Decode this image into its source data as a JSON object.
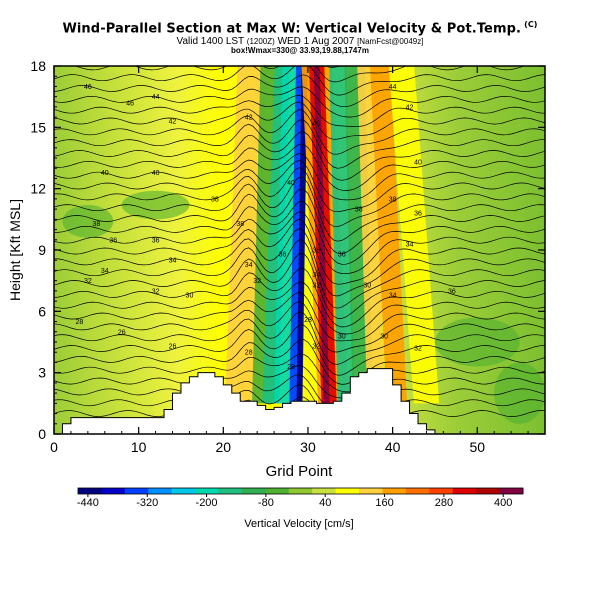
{
  "title": {
    "main": "Wind-Parallel Section at Max W: Vertical Velocity & Pot.Temp.",
    "copyright": "(C)",
    "valid_prefix": "Valid 1400 LST",
    "valid_init": "(1200Z)",
    "valid_date": "WED 1 Aug 2007",
    "valid_model": "[NamFcst@0049z]",
    "location": "box!Wmax=330@ 33.93,19.88,1747m"
  },
  "chart_data": {
    "type": "heatmap",
    "xlabel": "Grid Point",
    "ylabel": "Height [Kft MSL]",
    "xlim": [
      0,
      58
    ],
    "ylim": [
      0,
      18
    ],
    "xticks": [
      0,
      10,
      20,
      30,
      40,
      50
    ],
    "yticks": [
      0,
      3,
      6,
      9,
      12,
      15,
      18
    ],
    "colorbar": {
      "label": "Vertical Velocity [cm/s]",
      "tick_labels": [
        -440,
        -320,
        -200,
        -80,
        40,
        160,
        280,
        400
      ],
      "range": [
        -460,
        440
      ],
      "colors": [
        "#000080",
        "#0000c8",
        "#0040ff",
        "#0090ff",
        "#00c8e6",
        "#00d8b0",
        "#20c080",
        "#30b050",
        "#50b030",
        "#90c830",
        "#c8e040",
        "#ffff00",
        "#ffd040",
        "#ffa000",
        "#ff7000",
        "#ff4000",
        "#e00000",
        "#b00000",
        "#800040"
      ]
    },
    "terrain_kft": [
      0,
      0.5,
      0.8,
      0.8,
      0.8,
      0.8,
      0.8,
      0.8,
      0.8,
      0.8,
      0.8,
      0.8,
      0.8,
      1.2,
      2.0,
      2.5,
      2.8,
      3.0,
      3.0,
      2.8,
      2.4,
      2.0,
      1.6,
      1.6,
      1.4,
      1.2,
      1.3,
      1.5,
      1.6,
      1.6,
      1.6,
      1.5,
      1.5,
      1.6,
      2.0,
      2.8,
      3.0,
      3.2,
      3.2,
      3.2,
      2.4,
      1.6,
      1.0,
      0.5,
      0.2,
      0,
      0,
      0,
      0,
      0,
      0,
      0,
      0,
      0,
      0,
      0,
      0,
      0,
      0
    ],
    "contour_labels": [
      {
        "text": "46",
        "x": 4,
        "y": 17.0
      },
      {
        "text": "46",
        "x": 9,
        "y": 16.2
      },
      {
        "text": "44",
        "x": 12,
        "y": 16.5
      },
      {
        "text": "42",
        "x": 14,
        "y": 15.3
      },
      {
        "text": "42",
        "x": 23,
        "y": 15.5
      },
      {
        "text": "40",
        "x": 31,
        "y": 15.2
      },
      {
        "text": "44",
        "x": 40,
        "y": 17.0
      },
      {
        "text": "42",
        "x": 42,
        "y": 16.0
      },
      {
        "text": "40",
        "x": 43,
        "y": 13.3
      },
      {
        "text": "40",
        "x": 6,
        "y": 12.8
      },
      {
        "text": "40",
        "x": 12,
        "y": 12.8
      },
      {
        "text": "38",
        "x": 19,
        "y": 11.5
      },
      {
        "text": "38",
        "x": 22,
        "y": 10.3
      },
      {
        "text": "40",
        "x": 28,
        "y": 12.3
      },
      {
        "text": "38",
        "x": 36,
        "y": 11.0
      },
      {
        "text": "38",
        "x": 40,
        "y": 11.5
      },
      {
        "text": "36",
        "x": 43,
        "y": 10.8
      },
      {
        "text": "38",
        "x": 5,
        "y": 10.3
      },
      {
        "text": "36",
        "x": 7,
        "y": 9.5
      },
      {
        "text": "36",
        "x": 12,
        "y": 9.5
      },
      {
        "text": "34",
        "x": 14,
        "y": 8.5
      },
      {
        "text": "34",
        "x": 23,
        "y": 8.3
      },
      {
        "text": "36",
        "x": 27,
        "y": 8.8
      },
      {
        "text": "36",
        "x": 31,
        "y": 9.0
      },
      {
        "text": "36",
        "x": 34,
        "y": 8.8
      },
      {
        "text": "34",
        "x": 42,
        "y": 9.3
      },
      {
        "text": "34",
        "x": 6,
        "y": 8.0
      },
      {
        "text": "32",
        "x": 4,
        "y": 7.5
      },
      {
        "text": "32",
        "x": 12,
        "y": 7.0
      },
      {
        "text": "30",
        "x": 16,
        "y": 6.8
      },
      {
        "text": "32",
        "x": 24,
        "y": 7.5
      },
      {
        "text": "34",
        "x": 31,
        "y": 7.8
      },
      {
        "text": "30",
        "x": 37,
        "y": 7.3
      },
      {
        "text": "34",
        "x": 40,
        "y": 6.8
      },
      {
        "text": "36",
        "x": 47,
        "y": 7.0
      },
      {
        "text": "28",
        "x": 3,
        "y": 5.5
      },
      {
        "text": "26",
        "x": 8,
        "y": 5.0
      },
      {
        "text": "26",
        "x": 14,
        "y": 4.3
      },
      {
        "text": "28",
        "x": 23,
        "y": 4.0
      },
      {
        "text": "28",
        "x": 30,
        "y": 5.6
      },
      {
        "text": "32",
        "x": 31,
        "y": 4.3
      },
      {
        "text": "30",
        "x": 34,
        "y": 4.8
      },
      {
        "text": "30",
        "x": 39,
        "y": 4.8
      },
      {
        "text": "32",
        "x": 43,
        "y": 4.2
      },
      {
        "text": "28",
        "x": 28,
        "y": 3.3
      },
      {
        "text": "32",
        "x": 31,
        "y": 7.3
      }
    ]
  }
}
